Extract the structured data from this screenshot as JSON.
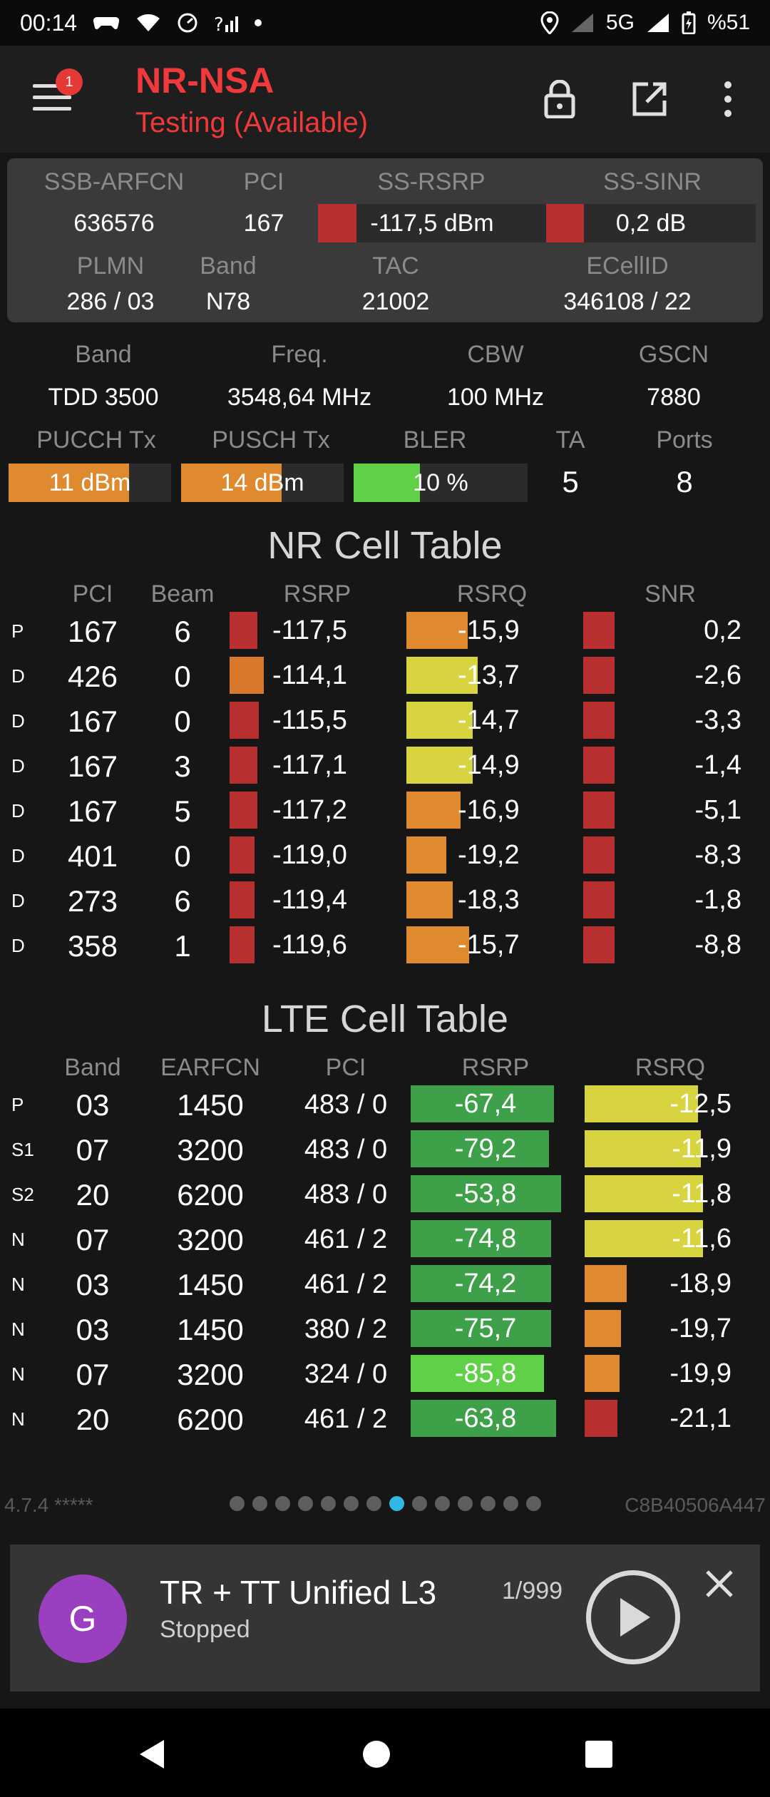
{
  "status_bar": {
    "time": "00:14",
    "network": "5G",
    "battery": "%51"
  },
  "app": {
    "title": "NR-NSA",
    "subtitle": "Testing (Available)",
    "badge_count": "1"
  },
  "serving": {
    "labels": {
      "arfcn": "SSB-ARFCN",
      "pci": "PCI",
      "rsrp": "SS-RSRP",
      "sinr": "SS-SINR",
      "plmn": "PLMN",
      "band": "Band",
      "tac": "TAC",
      "ecellid": "ECellID"
    },
    "arfcn": "636576",
    "pci": "167",
    "rsrp": "-117,5 dBm",
    "sinr": "0,2 dB",
    "plmn": "286 / 03",
    "band": "N78",
    "tac": "21002",
    "ecellid": "346108 / 22",
    "rsrp_level": 0.17,
    "sinr_level": 0.18
  },
  "info": {
    "labels": {
      "band": "Band",
      "freq": "Freq.",
      "cbw": "CBW",
      "gscn": "GSCN",
      "pucch": "PUCCH Tx",
      "pusch": "PUSCH Tx",
      "bler": "BLER",
      "ta": "TA",
      "ports": "Ports"
    },
    "band": "TDD 3500",
    "freq": "3548,64 MHz",
    "cbw": "100 MHz",
    "gscn": "7880",
    "pucch": "11 dBm",
    "pusch": "14 dBm",
    "bler": "10 %",
    "ta": "5",
    "ports": "8",
    "pucch_level": 0.74,
    "pusch_level": 0.62,
    "bler_level": 0.38
  },
  "nr_table": {
    "title": "NR Cell Table",
    "headers": [
      "PCI",
      "Beam",
      "RSRP",
      "RSRQ",
      "SNR"
    ],
    "rows": [
      {
        "tag": "P",
        "pci": "167",
        "beam": "6",
        "rsrp": "-117,5",
        "rsrq": "-15,9",
        "snr": "0,2",
        "rsrp_level": 0.17,
        "rsrq_level": 0.52,
        "snr_level": 0.18,
        "rsrp_color": "#b7302f",
        "rsrq_color": "#e08a2f",
        "snr_color": "#b7302f"
      },
      {
        "tag": "D",
        "pci": "426",
        "beam": "0",
        "rsrp": "-114,1",
        "rsrq": "-13,7",
        "snr": "-2,6",
        "rsrp_level": 0.21,
        "rsrq_level": 0.6,
        "snr_level": 0.18,
        "rsrp_color": "#d9772a",
        "rsrq_color": "#d7d43f",
        "snr_color": "#b7302f"
      },
      {
        "tag": "D",
        "pci": "167",
        "beam": "0",
        "rsrp": "-115,5",
        "rsrq": "-14,7",
        "snr": "-3,3",
        "rsrp_level": 0.18,
        "rsrq_level": 0.56,
        "snr_level": 0.18,
        "rsrp_color": "#b7302f",
        "rsrq_color": "#d7d43f",
        "snr_color": "#b7302f"
      },
      {
        "tag": "D",
        "pci": "167",
        "beam": "3",
        "rsrp": "-117,1",
        "rsrq": "-14,9",
        "snr": "-1,4",
        "rsrp_level": 0.17,
        "rsrq_level": 0.56,
        "snr_level": 0.18,
        "rsrp_color": "#b7302f",
        "rsrq_color": "#d7d43f",
        "snr_color": "#b7302f"
      },
      {
        "tag": "D",
        "pci": "167",
        "beam": "5",
        "rsrp": "-117,2",
        "rsrq": "-16,9",
        "snr": "-5,1",
        "rsrp_level": 0.17,
        "rsrq_level": 0.46,
        "snr_level": 0.18,
        "rsrp_color": "#b7302f",
        "rsrq_color": "#e08a2f",
        "snr_color": "#b7302f"
      },
      {
        "tag": "D",
        "pci": "401",
        "beam": "0",
        "rsrp": "-119,0",
        "rsrq": "-19,2",
        "snr": "-8,3",
        "rsrp_level": 0.15,
        "rsrq_level": 0.34,
        "snr_level": 0.18,
        "rsrp_color": "#b7302f",
        "rsrq_color": "#e08a2f",
        "snr_color": "#b7302f"
      },
      {
        "tag": "D",
        "pci": "273",
        "beam": "6",
        "rsrp": "-119,4",
        "rsrq": "-18,3",
        "snr": "-1,8",
        "rsrp_level": 0.15,
        "rsrq_level": 0.39,
        "snr_level": 0.18,
        "rsrp_color": "#b7302f",
        "rsrq_color": "#e08a2f",
        "snr_color": "#b7302f"
      },
      {
        "tag": "D",
        "pci": "358",
        "beam": "1",
        "rsrp": "-119,6",
        "rsrq": "-15,7",
        "snr": "-8,8",
        "rsrp_level": 0.15,
        "rsrq_level": 0.53,
        "snr_level": 0.18,
        "rsrp_color": "#b7302f",
        "rsrq_color": "#e08a2f",
        "snr_color": "#b7302f"
      }
    ]
  },
  "lte_table": {
    "title": "LTE Cell Table",
    "headers": [
      "Band",
      "EARFCN",
      "PCI",
      "RSRP",
      "RSRQ"
    ],
    "rows": [
      {
        "tag": "P",
        "band": "03",
        "earfcn": "1450",
        "pci": "483 / 0",
        "rsrp": "-67,4",
        "rsrq": "-12,5",
        "rsrp_level": 0.86,
        "rsrq_level": 0.65,
        "rsrp_color": "#3fa04a",
        "rsrq_color": "#d7d43f"
      },
      {
        "tag": "S1",
        "band": "07",
        "earfcn": "3200",
        "pci": "483 / 0",
        "rsrp": "-79,2",
        "rsrq": "-11,9",
        "rsrp_level": 0.83,
        "rsrq_level": 0.67,
        "rsrp_color": "#3fa04a",
        "rsrq_color": "#d7d43f"
      },
      {
        "tag": "S2",
        "band": "20",
        "earfcn": "6200",
        "pci": "483 / 0",
        "rsrp": "-53,8",
        "rsrq": "-11,8",
        "rsrp_level": 0.9,
        "rsrq_level": 0.68,
        "rsrp_color": "#3fa04a",
        "rsrq_color": "#d7d43f"
      },
      {
        "tag": "N",
        "band": "07",
        "earfcn": "3200",
        "pci": "461 / 2",
        "rsrp": "-74,8",
        "rsrq": "-11,6",
        "rsrp_level": 0.84,
        "rsrq_level": 0.68,
        "rsrp_color": "#3fa04a",
        "rsrq_color": "#d7d43f"
      },
      {
        "tag": "N",
        "band": "03",
        "earfcn": "1450",
        "pci": "461 / 2",
        "rsrp": "-74,2",
        "rsrq": "-18,9",
        "rsrp_level": 0.84,
        "rsrq_level": 0.24,
        "rsrp_color": "#3fa04a",
        "rsrq_color": "#e08a2f"
      },
      {
        "tag": "N",
        "band": "03",
        "earfcn": "1450",
        "pci": "380 / 2",
        "rsrp": "-75,7",
        "rsrq": "-19,7",
        "rsrp_level": 0.84,
        "rsrq_level": 0.21,
        "rsrp_color": "#3fa04a",
        "rsrq_color": "#e08a2f"
      },
      {
        "tag": "N",
        "band": "07",
        "earfcn": "3200",
        "pci": "324 / 0",
        "rsrp": "-85,8",
        "rsrq": "-19,9",
        "rsrp_level": 0.8,
        "rsrq_level": 0.2,
        "rsrp_color": "#5fd048",
        "rsrq_color": "#e08a2f"
      },
      {
        "tag": "N",
        "band": "20",
        "earfcn": "6200",
        "pci": "461 / 2",
        "rsrp": "-63,8",
        "rsrq": "-21,1",
        "rsrp_level": 0.87,
        "rsrq_level": 0.19,
        "rsrp_color": "#3fa04a",
        "rsrq_color": "#b7302f"
      }
    ]
  },
  "footer": {
    "version": "4.7.4 *****",
    "device_id": "C8B40506A447",
    "page_count": 14,
    "active_page": 7
  },
  "player": {
    "avatar_letter": "G",
    "title": "TR + TT Unified L3",
    "status": "Stopped",
    "counter": "1/999"
  },
  "colors": {
    "accent_red": "#f0393a",
    "bar_red": "#b7302f",
    "bar_orange": "#e08a2f",
    "bar_yellow": "#d7d43f",
    "bar_green": "#3fa04a",
    "active_dot": "#2fb7e6"
  }
}
